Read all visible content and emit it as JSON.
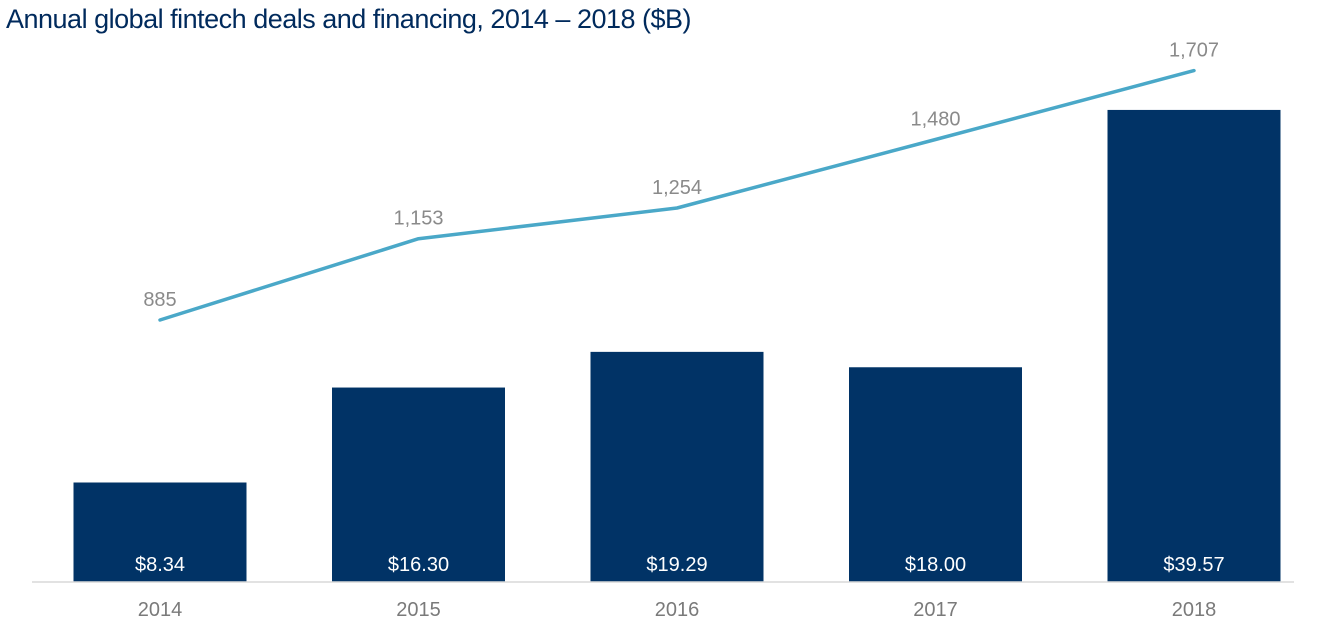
{
  "chart_data": {
    "type": "bar",
    "title": "Annual global fintech deals and financing, 2014 – 2018 ($B)",
    "categories": [
      "2014",
      "2015",
      "2016",
      "2017",
      "2018"
    ],
    "series": [
      {
        "type": "bar",
        "values": [
          8.34,
          16.3,
          19.29,
          18.0,
          39.57
        ],
        "labels": [
          "$8.34",
          "$16.30",
          "$19.29",
          "$18.00",
          "$39.57"
        ],
        "color": "#013366"
      },
      {
        "type": "line",
        "values": [
          885,
          1153,
          1254,
          1480,
          1707
        ],
        "labels": [
          "885",
          "1,153",
          "1,254",
          "1,480",
          "1,707"
        ],
        "color": "#4aa8c8"
      }
    ],
    "xlabel": "",
    "ylabel": "",
    "bar_ylim": [
      0,
      40
    ],
    "line_ylim": [
      0,
      1900
    ],
    "grid": false,
    "legend": "none"
  }
}
